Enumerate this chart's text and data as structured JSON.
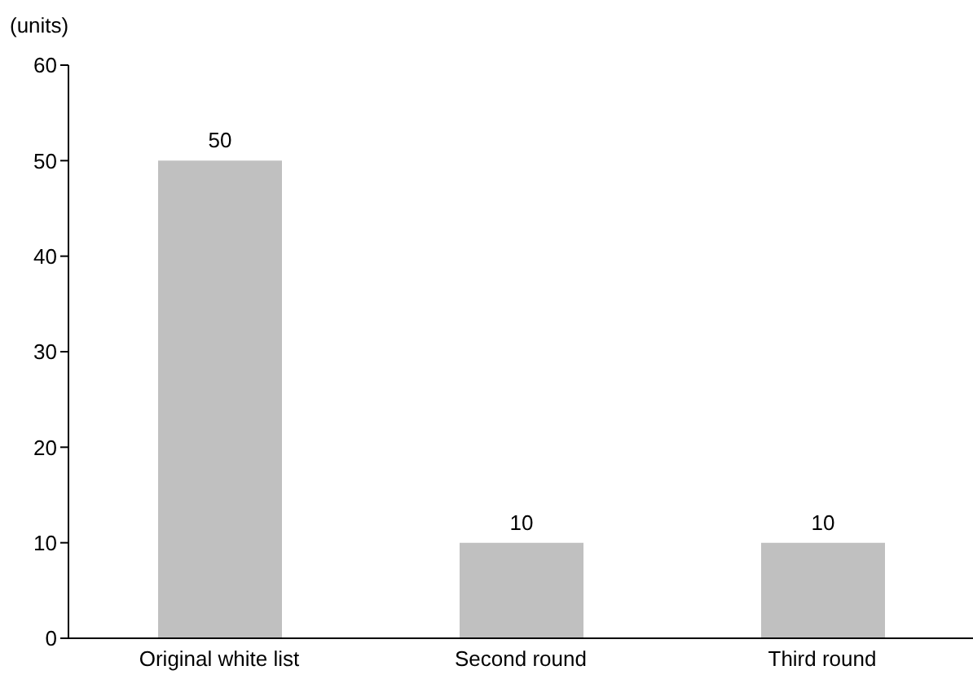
{
  "chart_data": {
    "type": "bar",
    "ylabel": "(units)",
    "categories": [
      "Original white list",
      "Second round",
      "Third round"
    ],
    "values": [
      50,
      10,
      10
    ],
    "color": "#c0c0c0",
    "ylim": [
      0,
      60
    ],
    "yticks": [
      0,
      10,
      20,
      30,
      40,
      50,
      60
    ],
    "data_labels": true
  }
}
